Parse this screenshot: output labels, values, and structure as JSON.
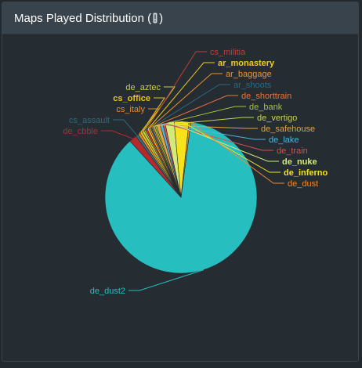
{
  "header": {
    "title_prefix": "Maps Played Distribution (",
    "title_suffix": ")",
    "icon": "exclamation-icon"
  },
  "chart_data": {
    "type": "pie",
    "title": "Maps Played Distribution",
    "slices": [
      {
        "label": "de_dust2",
        "value": 85.5,
        "color": "#27bebf",
        "bold": false
      },
      {
        "label": "de_cbble",
        "value": 1.6,
        "color": "#b52a2d",
        "bold": false
      },
      {
        "label": "cs_assault",
        "value": 0.6,
        "color": "#2f6a7c",
        "bold": false
      },
      {
        "label": "cs_italy",
        "value": 0.5,
        "color": "#e88a2e",
        "bold": false
      },
      {
        "label": "cs_office",
        "value": 0.5,
        "color": "#e8c514",
        "bold": true
      },
      {
        "label": "de_aztec",
        "value": 0.5,
        "color": "#c6d13a",
        "bold": false
      },
      {
        "label": "",
        "value": 0.3,
        "color": "#d4ce3c",
        "bold": false
      },
      {
        "label": "cs_militia",
        "value": 0.4,
        "color": "#c33b3d",
        "bold": false
      },
      {
        "label": "ar_monastery",
        "value": 0.4,
        "color": "#f2cc1b",
        "bold": true
      },
      {
        "label": "ar_baggage",
        "value": 0.3,
        "color": "#f0922a",
        "bold": false
      },
      {
        "label": "ar_shoots",
        "value": 0.3,
        "color": "#2a6a80",
        "bold": false
      },
      {
        "label": "de_shorttrain",
        "value": 0.3,
        "color": "#e8773e",
        "bold": false
      },
      {
        "label": "de_bank",
        "value": 0.4,
        "color": "#a8c43a",
        "bold": false
      },
      {
        "label": "de_vertigo",
        "value": 0.3,
        "color": "#c9d64a",
        "bold": false
      },
      {
        "label": "de_safehouse",
        "value": 0.8,
        "color": "#e5a339",
        "bold": false
      },
      {
        "label": "de_lake",
        "value": 0.6,
        "color": "#52b4dd",
        "bold": false
      },
      {
        "label": "de_train",
        "value": 0.5,
        "color": "#dc4d4f",
        "bold": false
      },
      {
        "label": "de_nuke",
        "value": 1.9,
        "color": "#d5e97a",
        "bold": true
      },
      {
        "label": "de_inferno",
        "value": 3.1,
        "color": "#f6e31b",
        "bold": true
      },
      {
        "label": "de_dust",
        "value": 0.4,
        "color": "#f0892e",
        "bold": false
      }
    ]
  }
}
